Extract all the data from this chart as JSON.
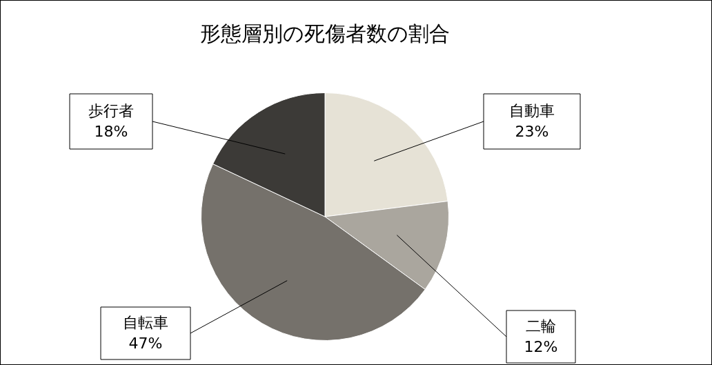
{
  "chart_data": {
    "type": "pie",
    "title": "形態層別の死傷者数の割合",
    "categories": [
      "自動車",
      "二輪",
      "自転車",
      "歩行者"
    ],
    "values": [
      23,
      12,
      47,
      18
    ],
    "colors": [
      "#e6e2d6",
      "#aaa69e",
      "#75716b",
      "#3c3a37"
    ],
    "value_labels": [
      "23%",
      "12%",
      "47%",
      "18%"
    ],
    "legend": false
  }
}
